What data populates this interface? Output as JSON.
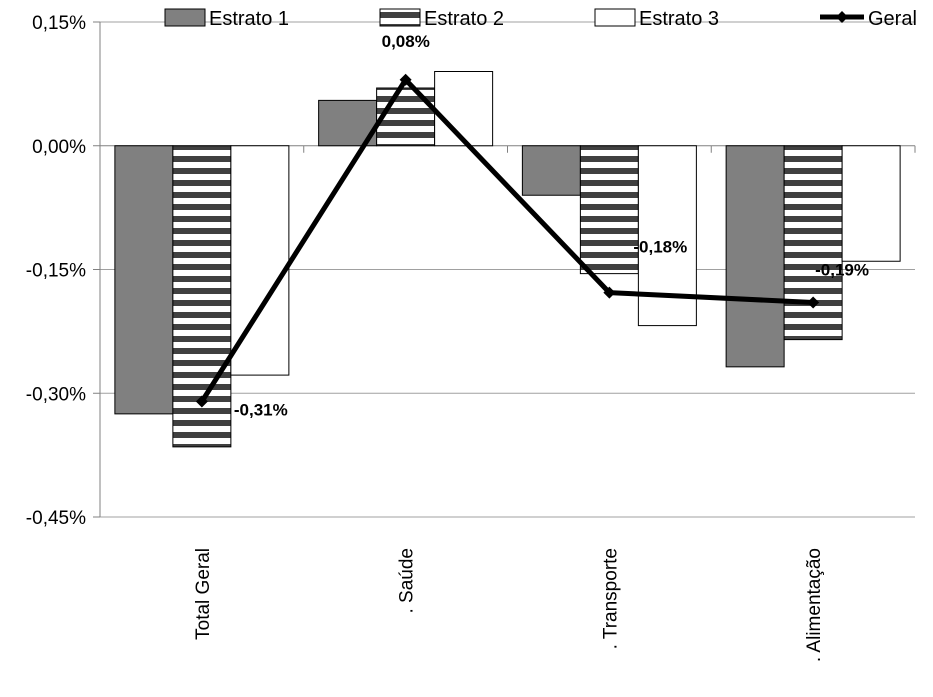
{
  "chart_data": {
    "type": "bar",
    "categories": [
      "Total Geral",
      ". Saúde",
      ". Transporte",
      ". Alimentação"
    ],
    "series": [
      {
        "name": "Estrato 1",
        "kind": "bar",
        "color": "#808080",
        "pattern": "solid",
        "values": [
          -0.325,
          0.055,
          -0.06,
          -0.268
        ]
      },
      {
        "name": "Estrato 2",
        "kind": "bar",
        "color": "#ffffff",
        "pattern": "horizontal-stripes",
        "values": [
          -0.365,
          0.07,
          -0.155,
          -0.235
        ]
      },
      {
        "name": "Estrato 3",
        "kind": "bar",
        "color": "#ffffff",
        "pattern": "solid",
        "values": [
          -0.278,
          0.09,
          -0.218,
          -0.14
        ]
      },
      {
        "name": "Geral",
        "kind": "line",
        "color": "#000000",
        "values": [
          -0.31,
          0.08,
          -0.178,
          -0.19
        ]
      }
    ],
    "data_labels": [
      "-0,31%",
      "0,08%",
      "-0,18%",
      "-0,19%"
    ],
    "y_ticks": [
      "0,15%",
      "0,00%",
      "-0,15%",
      "-0,30%",
      "-0,45%"
    ],
    "ylim": [
      -0.45,
      0.15
    ],
    "grid": true,
    "legend_position": "top"
  }
}
